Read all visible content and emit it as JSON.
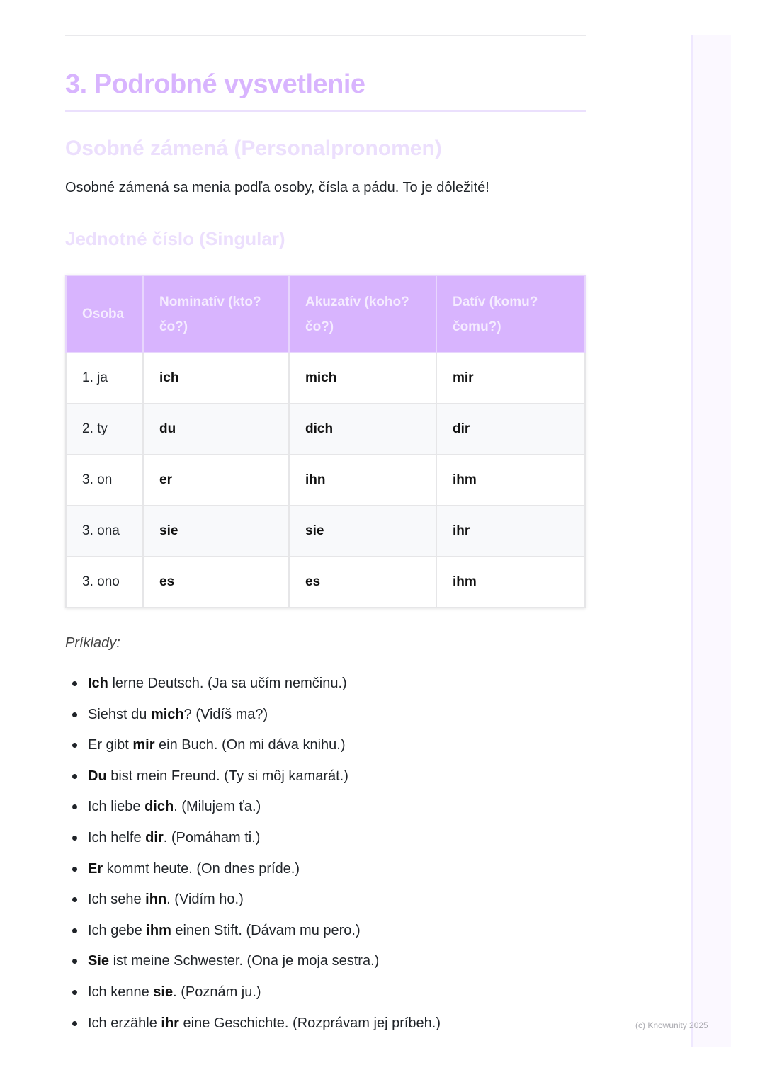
{
  "heading": "3. Podrobné vysvetlenie",
  "subheading": "Osobné zámená (Personalpronomen)",
  "intro": "Osobné zámená sa menia podľa osoby, čísla a pádu. To je dôležité!",
  "section": "Jednotné číslo (Singular)",
  "table": {
    "headers": [
      "Osoba",
      "Nominatív (kto? čo?)",
      "Akuzatív (koho? čo?)",
      "Datív (komu? čomu?)"
    ],
    "rows": [
      [
        "1. ja",
        "ich",
        "mich",
        "mir"
      ],
      [
        "2. ty",
        "du",
        "dich",
        "dir"
      ],
      [
        "3. on",
        "er",
        "ihn",
        "ihm"
      ],
      [
        "3. ona",
        "sie",
        "sie",
        "ihr"
      ],
      [
        "3. ono",
        "es",
        "es",
        "ihm"
      ]
    ]
  },
  "examples_label": "Príklady:",
  "examples": [
    [
      "",
      "Ich",
      " lerne Deutsch. (Ja sa učím nemčinu.)"
    ],
    [
      "Siehst du ",
      "mich",
      "? (Vidíš ma?)"
    ],
    [
      "Er gibt ",
      "mir",
      " ein Buch. (On mi dáva knihu.)"
    ],
    [
      "",
      "Du",
      " bist mein Freund. (Ty si môj kamarát.)"
    ],
    [
      "Ich liebe ",
      "dich",
      ". (Milujem ťa.)"
    ],
    [
      "Ich helfe ",
      "dir",
      ". (Pomáham ti.)"
    ],
    [
      "",
      "Er",
      " kommt heute. (On dnes príde.)"
    ],
    [
      "Ich sehe ",
      "ihn",
      ". (Vidím ho.)"
    ],
    [
      "Ich gebe ",
      "ihm",
      " einen Stift. (Dávam mu pero.)"
    ],
    [
      "",
      "Sie",
      " ist meine Schwester. (Ona je moja sestra.)"
    ],
    [
      "Ich kenne ",
      "sie",
      ". (Poznám ju.)"
    ],
    [
      "Ich erzähle ",
      "ihr",
      " eine Geschichte. (Rozprávam jej príbeh.)"
    ]
  ],
  "footer": "(c) Knowunity 2025",
  "colors": {
    "accent": "#d8b4fe"
  }
}
